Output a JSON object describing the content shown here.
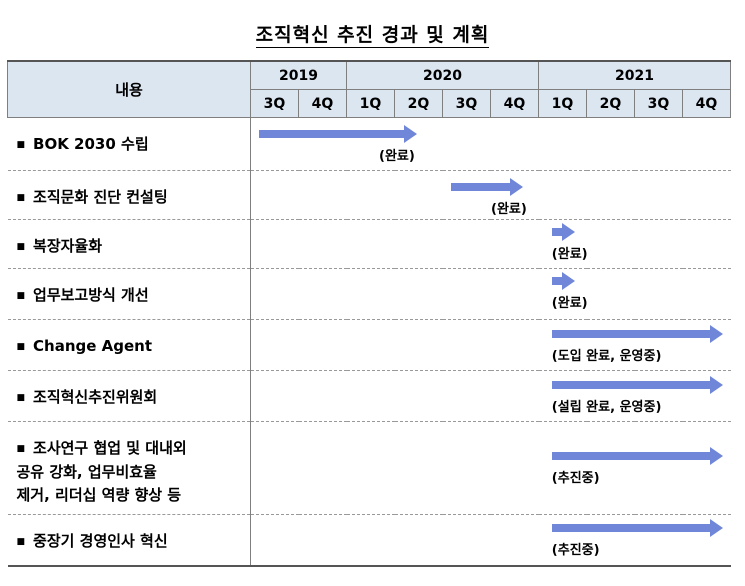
{
  "title": "조직혁신 추진 경과 및 계획",
  "header": {
    "content_label": "내용",
    "years": [
      {
        "label": "2019",
        "span": 2
      },
      {
        "label": "2020",
        "span": 4
      },
      {
        "label": "2021",
        "span": 4
      }
    ],
    "quarters": [
      "3Q",
      "4Q",
      "1Q",
      "2Q",
      "3Q",
      "4Q",
      "1Q",
      "2Q",
      "3Q",
      "4Q"
    ]
  },
  "rows": [
    {
      "lines": [
        "BOK 2030 수립"
      ],
      "start": 0,
      "end": 3.5,
      "note": "(완료)"
    },
    {
      "lines": [
        "조직문화 진단 컨설팅"
      ],
      "start": 4,
      "end": 5.7,
      "note": "(완료)"
    },
    {
      "lines": [
        "복장자율화"
      ],
      "start": 6.1,
      "end": 6.8,
      "note": "(완료)"
    },
    {
      "lines": [
        "업무보고방식 개선"
      ],
      "start": 6.1,
      "end": 6.8,
      "note": "(완료)"
    },
    {
      "lines": [
        "Change Agent"
      ],
      "start": 6.1,
      "end": 10,
      "note": "(도입 완료, 운영중)"
    },
    {
      "lines": [
        "조직혁신추진위원회"
      ],
      "start": 6.1,
      "end": 10,
      "note": "(설립 완료, 운영중)"
    },
    {
      "lines": [
        "조사연구 협업 및 대내외",
        "공유 강화, 업무비효율",
        "제거, 리더십 역량 향상 등"
      ],
      "start": 6.1,
      "end": 10,
      "note": "(추진중)"
    },
    {
      "lines": [
        "중장기 경영인사 혁신"
      ],
      "start": 6.1,
      "end": 10,
      "note": "(추진중)"
    }
  ]
}
